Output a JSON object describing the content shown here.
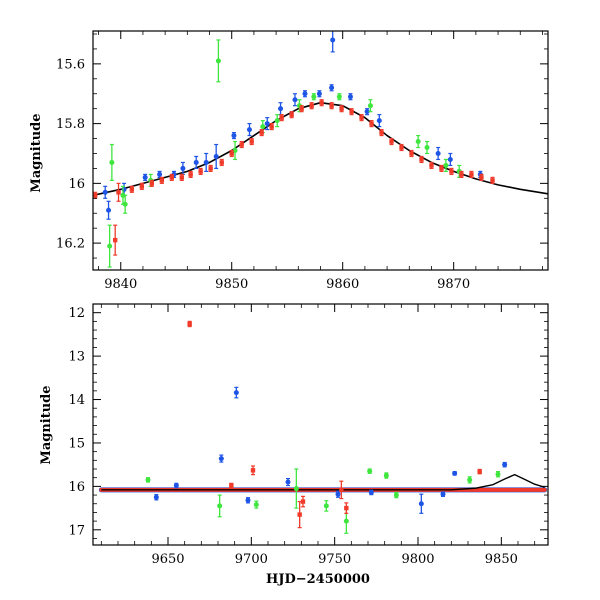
{
  "chart_data": [
    {
      "type": "scatter",
      "name": "zoom",
      "title": "",
      "xlabel": "",
      "ylabel": "Magnitude",
      "xlim": [
        9837.5,
        9878.5
      ],
      "ylim": [
        16.29,
        15.49
      ],
      "y_inverted": true,
      "xticks": [
        9840,
        9850,
        9860,
        9870
      ],
      "xtick_labels": [
        "9840",
        "9850",
        "9860",
        "9870"
      ],
      "yticks": [
        15.6,
        15.8,
        16.0,
        16.2
      ],
      "ytick_labels": [
        "15.6",
        "15.8",
        "16",
        "16.2"
      ],
      "model_curve": {
        "name": "Model fit",
        "color": "#000000",
        "x": [
          9837.5,
          9840,
          9842,
          9844,
          9846,
          9848,
          9850,
          9852,
          9854,
          9856,
          9858,
          9860,
          9862,
          9864,
          9866,
          9868,
          9870,
          9872,
          9874,
          9876,
          9878.5
        ],
        "y": [
          16.04,
          16.02,
          16.0,
          15.98,
          15.96,
          15.93,
          15.89,
          15.84,
          15.79,
          15.75,
          15.73,
          15.74,
          15.78,
          15.84,
          15.89,
          15.93,
          15.96,
          15.985,
          16.005,
          16.02,
          16.035
        ]
      },
      "series": [
        {
          "name": "Blue",
          "color": "#1f55e6",
          "points": [
            {
              "x": 9838.6,
              "y": 16.03,
              "err": 0.02
            },
            {
              "x": 9838.9,
              "y": 16.09,
              "err": 0.03
            },
            {
              "x": 9840.3,
              "y": 16.02,
              "err": 0.02
            },
            {
              "x": 9842.2,
              "y": 15.98,
              "err": 0.01
            },
            {
              "x": 9843.5,
              "y": 15.97,
              "err": 0.01
            },
            {
              "x": 9844.8,
              "y": 15.97,
              "err": 0.01
            },
            {
              "x": 9845.6,
              "y": 15.95,
              "err": 0.02
            },
            {
              "x": 9846.8,
              "y": 15.93,
              "err": 0.02
            },
            {
              "x": 9847.7,
              "y": 15.93,
              "err": 0.03
            },
            {
              "x": 9848.6,
              "y": 15.91,
              "err": 0.04
            },
            {
              "x": 9850.2,
              "y": 15.84,
              "err": 0.01
            },
            {
              "x": 9851.6,
              "y": 15.82,
              "err": 0.02
            },
            {
              "x": 9853.2,
              "y": 15.8,
              "err": 0.02
            },
            {
              "x": 9854.4,
              "y": 15.75,
              "err": 0.02
            },
            {
              "x": 9855.7,
              "y": 15.72,
              "err": 0.02
            },
            {
              "x": 9856.6,
              "y": 15.7,
              "err": 0.01
            },
            {
              "x": 9857.9,
              "y": 15.7,
              "err": 0.01
            },
            {
              "x": 9859.0,
              "y": 15.68,
              "err": 0.01
            },
            {
              "x": 9859.1,
              "y": 15.52,
              "err": 0.04
            },
            {
              "x": 9860.7,
              "y": 15.71,
              "err": 0.01
            },
            {
              "x": 9862.2,
              "y": 15.76,
              "err": 0.01
            },
            {
              "x": 9863.3,
              "y": 15.79,
              "err": 0.02
            },
            {
              "x": 9868.6,
              "y": 15.9,
              "err": 0.02
            },
            {
              "x": 9869.7,
              "y": 15.92,
              "err": 0.02
            },
            {
              "x": 9872.4,
              "y": 15.97,
              "err": 0.01
            }
          ]
        },
        {
          "name": "Green",
          "color": "#3ee63e",
          "points": [
            {
              "x": 9839.0,
              "y": 16.21,
              "err": 0.07
            },
            {
              "x": 9839.2,
              "y": 15.93,
              "err": 0.06
            },
            {
              "x": 9840.2,
              "y": 16.04,
              "err": 0.03
            },
            {
              "x": 9840.4,
              "y": 16.07,
              "err": 0.03
            },
            {
              "x": 9842.7,
              "y": 15.99,
              "err": 0.02
            },
            {
              "x": 9848.8,
              "y": 15.59,
              "err": 0.07
            },
            {
              "x": 9850.3,
              "y": 15.89,
              "err": 0.03
            },
            {
              "x": 9852.8,
              "y": 15.81,
              "err": 0.02
            },
            {
              "x": 9854.1,
              "y": 15.79,
              "err": 0.02
            },
            {
              "x": 9856.1,
              "y": 15.74,
              "err": 0.02
            },
            {
              "x": 9857.4,
              "y": 15.71,
              "err": 0.01
            },
            {
              "x": 9859.7,
              "y": 15.71,
              "err": 0.01
            },
            {
              "x": 9862.5,
              "y": 15.74,
              "err": 0.02
            },
            {
              "x": 9866.8,
              "y": 15.86,
              "err": 0.02
            },
            {
              "x": 9867.6,
              "y": 15.88,
              "err": 0.02
            },
            {
              "x": 9869.3,
              "y": 15.94,
              "err": 0.02
            },
            {
              "x": 9870.5,
              "y": 15.96,
              "err": 0.02
            }
          ]
        },
        {
          "name": "Red",
          "color": "#f03a2a",
          "points": [
            {
              "x": 9837.7,
              "y": 16.04,
              "err": 0.01
            },
            {
              "x": 9839.5,
              "y": 16.19,
              "err": 0.05
            },
            {
              "x": 9839.8,
              "y": 16.03,
              "err": 0.03
            },
            {
              "x": 9841.0,
              "y": 16.02,
              "err": 0.01
            },
            {
              "x": 9841.9,
              "y": 16.01,
              "err": 0.01
            },
            {
              "x": 9842.8,
              "y": 16.0,
              "err": 0.01
            },
            {
              "x": 9843.7,
              "y": 15.99,
              "err": 0.01
            },
            {
              "x": 9844.6,
              "y": 15.98,
              "err": 0.01
            },
            {
              "x": 9845.5,
              "y": 15.98,
              "err": 0.01
            },
            {
              "x": 9846.3,
              "y": 15.97,
              "err": 0.01
            },
            {
              "x": 9847.2,
              "y": 15.96,
              "err": 0.01
            },
            {
              "x": 9848.1,
              "y": 15.95,
              "err": 0.01
            },
            {
              "x": 9849.1,
              "y": 15.93,
              "err": 0.01
            },
            {
              "x": 9850.0,
              "y": 15.9,
              "err": 0.01
            },
            {
              "x": 9850.9,
              "y": 15.87,
              "err": 0.01
            },
            {
              "x": 9851.8,
              "y": 15.86,
              "err": 0.01
            },
            {
              "x": 9852.7,
              "y": 15.83,
              "err": 0.01
            },
            {
              "x": 9853.6,
              "y": 15.81,
              "err": 0.01
            },
            {
              "x": 9854.5,
              "y": 15.78,
              "err": 0.01
            },
            {
              "x": 9855.4,
              "y": 15.77,
              "err": 0.01
            },
            {
              "x": 9856.3,
              "y": 15.75,
              "err": 0.01
            },
            {
              "x": 9857.2,
              "y": 15.74,
              "err": 0.01
            },
            {
              "x": 9858.1,
              "y": 15.73,
              "err": 0.01
            },
            {
              "x": 9859.0,
              "y": 15.74,
              "err": 0.01
            },
            {
              "x": 9859.9,
              "y": 15.75,
              "err": 0.01
            },
            {
              "x": 9860.8,
              "y": 15.76,
              "err": 0.01
            },
            {
              "x": 9861.7,
              "y": 15.78,
              "err": 0.01
            },
            {
              "x": 9862.6,
              "y": 15.8,
              "err": 0.01
            },
            {
              "x": 9863.5,
              "y": 15.83,
              "err": 0.01
            },
            {
              "x": 9864.4,
              "y": 15.86,
              "err": 0.01
            },
            {
              "x": 9865.3,
              "y": 15.88,
              "err": 0.01
            },
            {
              "x": 9866.2,
              "y": 15.9,
              "err": 0.01
            },
            {
              "x": 9867.1,
              "y": 15.92,
              "err": 0.01
            },
            {
              "x": 9868.0,
              "y": 15.94,
              "err": 0.01
            },
            {
              "x": 9868.9,
              "y": 15.95,
              "err": 0.01
            },
            {
              "x": 9869.8,
              "y": 15.96,
              "err": 0.01
            },
            {
              "x": 9870.7,
              "y": 15.97,
              "err": 0.01
            },
            {
              "x": 9871.6,
              "y": 15.97,
              "err": 0.01
            },
            {
              "x": 9872.5,
              "y": 15.98,
              "err": 0.01
            },
            {
              "x": 9873.5,
              "y": 15.99,
              "err": 0.01
            }
          ]
        }
      ]
    },
    {
      "type": "scatter",
      "name": "full",
      "title": "",
      "xlabel": "HJD−2450000",
      "ylabel": "Magnitude",
      "xlim": [
        9605,
        9878
      ],
      "ylim": [
        17.35,
        11.8
      ],
      "y_inverted": true,
      "xticks": [
        9650,
        9700,
        9750,
        9800,
        9850
      ],
      "xtick_labels": [
        "9650",
        "9700",
        "9750",
        "9800",
        "9850"
      ],
      "yticks": [
        12,
        13,
        14,
        15,
        16,
        17
      ],
      "ytick_labels": [
        "12",
        "13",
        "14",
        "15",
        "16",
        "17"
      ],
      "baseline": {
        "x_start": 9610,
        "x_end": 9876,
        "mag": 16.08
      },
      "model_curve": {
        "name": "Model fit",
        "color": "#000000",
        "x": [
          9610,
          9820,
          9835,
          9845,
          9852,
          9858,
          9864,
          9870,
          9876
        ],
        "y": [
          16.08,
          16.08,
          16.04,
          15.96,
          15.83,
          15.73,
          15.84,
          15.95,
          16.02
        ]
      },
      "series": [
        {
          "name": "Blue",
          "color": "#1f55e6",
          "points": [
            {
              "x": 9691,
              "y": 13.84,
              "err": 0.12
            },
            {
              "x": 9682,
              "y": 15.36,
              "err": 0.08
            },
            {
              "x": 9643,
              "y": 16.25,
              "err": 0.06
            },
            {
              "x": 9655,
              "y": 15.98,
              "err": 0.05
            },
            {
              "x": 9698,
              "y": 16.32,
              "err": 0.06
            },
            {
              "x": 9722,
              "y": 15.9,
              "err": 0.08
            },
            {
              "x": 9752,
              "y": 16.18,
              "err": 0.07
            },
            {
              "x": 9772,
              "y": 16.14,
              "err": 0.05
            },
            {
              "x": 9802,
              "y": 16.4,
              "err": 0.22
            },
            {
              "x": 9822,
              "y": 15.7,
              "err": 0.04
            },
            {
              "x": 9852,
              "y": 15.5,
              "err": 0.05
            },
            {
              "x": 9815,
              "y": 16.18,
              "err": 0.05
            }
          ]
        },
        {
          "name": "Green",
          "color": "#3ee63e",
          "points": [
            {
              "x": 9638,
              "y": 15.85,
              "err": 0.05
            },
            {
              "x": 9681,
              "y": 16.45,
              "err": 0.25
            },
            {
              "x": 9703,
              "y": 16.42,
              "err": 0.08
            },
            {
              "x": 9727,
              "y": 16.05,
              "err": 0.45
            },
            {
              "x": 9745,
              "y": 16.45,
              "err": 0.12
            },
            {
              "x": 9757,
              "y": 16.8,
              "err": 0.28
            },
            {
              "x": 9771,
              "y": 15.65,
              "err": 0.05
            },
            {
              "x": 9781,
              "y": 15.75,
              "err": 0.06
            },
            {
              "x": 9787,
              "y": 16.2,
              "err": 0.06
            },
            {
              "x": 9831,
              "y": 15.85,
              "err": 0.07
            },
            {
              "x": 9848,
              "y": 15.72,
              "err": 0.06
            }
          ]
        },
        {
          "name": "Red",
          "color": "#f03a2a",
          "points": [
            {
              "x": 9663,
              "y": 12.26,
              "err": 0.06
            },
            {
              "x": 9701,
              "y": 15.63,
              "err": 0.1
            },
            {
              "x": 9729,
              "y": 16.65,
              "err": 0.3
            },
            {
              "x": 9731,
              "y": 16.35,
              "err": 0.12
            },
            {
              "x": 9757,
              "y": 16.5,
              "err": 0.12
            },
            {
              "x": 9837,
              "y": 15.66,
              "err": 0.05
            },
            {
              "x": 9688,
              "y": 15.98,
              "err": 0.05
            },
            {
              "x": 9754,
              "y": 16.08,
              "err": 0.2
            }
          ]
        }
      ]
    }
  ]
}
